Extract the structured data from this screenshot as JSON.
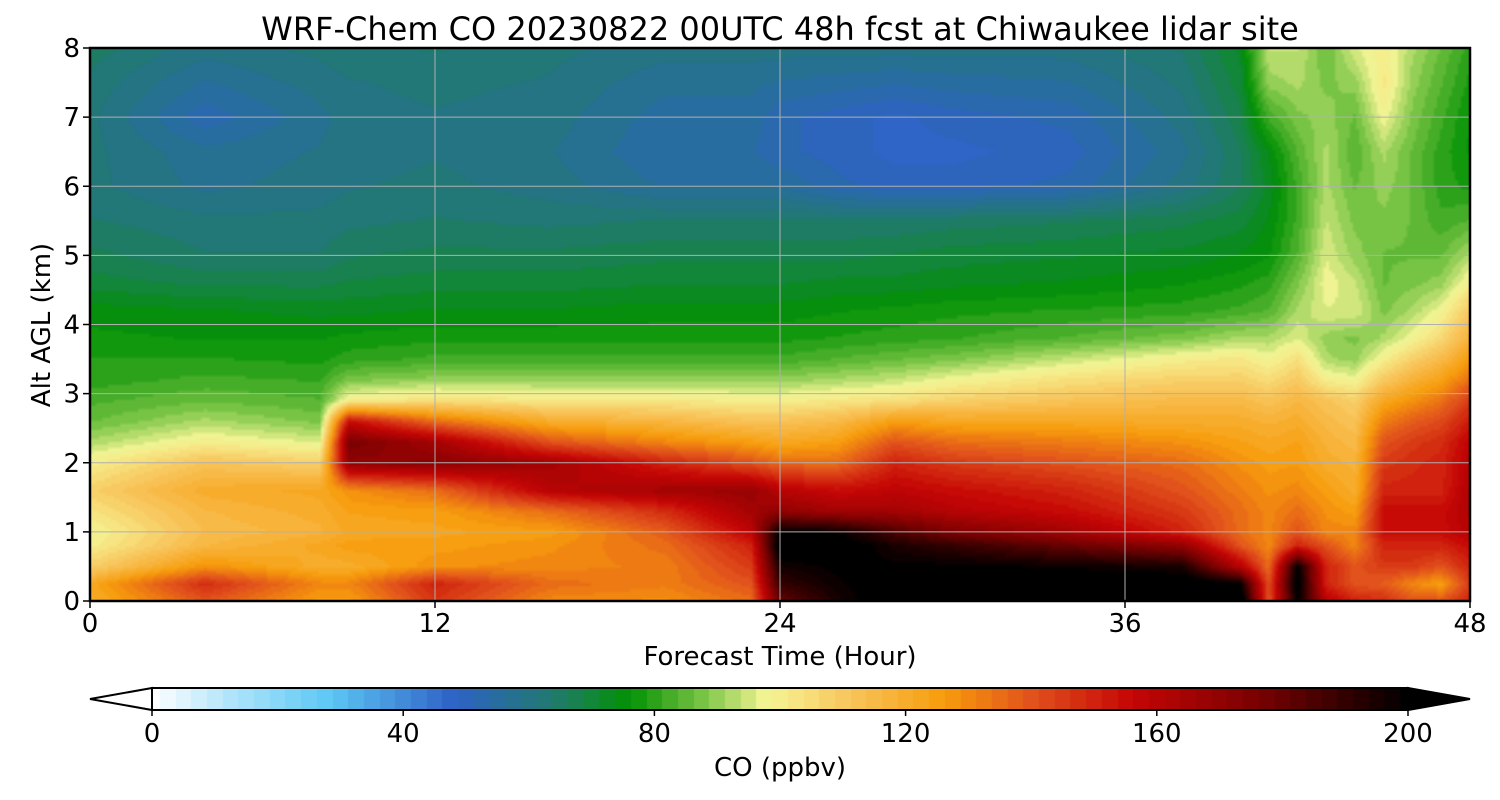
{
  "chart_data": {
    "type": "heatmap",
    "title": "WRF-Chem CO  20230822 00UTC 48h fcst at Chiwaukee lidar site",
    "xlabel": "Forecast Time (Hour)",
    "ylabel": "Alt AGL (km)",
    "xlim": [
      0,
      48
    ],
    "ylim": [
      0,
      8
    ],
    "xticks": [
      0,
      12,
      24,
      36,
      48
    ],
    "yticks": [
      0,
      1,
      2,
      3,
      4,
      5,
      6,
      7,
      8
    ],
    "grid": true,
    "colorbar": {
      "label": "CO  (ppbv)",
      "range": [
        0,
        200
      ],
      "ticks": [
        0,
        40,
        80,
        120,
        160,
        200
      ],
      "extend": "both",
      "orientation": "horizontal",
      "stops": [
        {
          "value": 0,
          "color": "#ffffff"
        },
        {
          "value": 12,
          "color": "#b3e5fa"
        },
        {
          "value": 28,
          "color": "#5ec8f5"
        },
        {
          "value": 48,
          "color": "#2e62c6"
        },
        {
          "value": 64,
          "color": "#207a6e"
        },
        {
          "value": 76,
          "color": "#039103"
        },
        {
          "value": 88,
          "color": "#7cc547"
        },
        {
          "value": 98,
          "color": "#f5f596"
        },
        {
          "value": 112,
          "color": "#f8c257"
        },
        {
          "value": 126,
          "color": "#f79c0c"
        },
        {
          "value": 140,
          "color": "#e1521c"
        },
        {
          "value": 156,
          "color": "#c50505"
        },
        {
          "value": 176,
          "color": "#7a0101"
        },
        {
          "value": 200,
          "color": "#000000"
        }
      ]
    },
    "time_hours": [
      0,
      4,
      8,
      9,
      12,
      16,
      20,
      23,
      24,
      26,
      28,
      30,
      34,
      38,
      40,
      41,
      42,
      43,
      44,
      45,
      46,
      47,
      48
    ],
    "altitudes_km": [
      0,
      0.25,
      0.5,
      0.8,
      1,
      1.3,
      1.6,
      2,
      2.3,
      2.6,
      2.9,
      3.2,
      3.5,
      3.8,
      4.2,
      4.6,
      5,
      5.5,
      6,
      6.5,
      7,
      7.5,
      8
    ],
    "co_ppbv": [
      [
        120,
        140,
        125,
        125,
        146,
        130,
        128,
        135,
        180,
        195,
        205,
        205,
        210,
        210,
        210,
        140,
        200,
        160,
        150,
        148,
        140,
        140,
        150
      ],
      [
        122,
        148,
        130,
        130,
        150,
        135,
        132,
        140,
        190,
        198,
        205,
        205,
        205,
        205,
        200,
        140,
        205,
        150,
        140,
        138,
        130,
        125,
        145
      ],
      [
        108,
        128,
        120,
        120,
        128,
        130,
        132,
        145,
        196,
        200,
        200,
        200,
        198,
        195,
        160,
        135,
        200,
        150,
        140,
        145,
        145,
        140,
        150
      ],
      [
        100,
        116,
        122,
        125,
        125,
        128,
        135,
        150,
        205,
        205,
        195,
        190,
        180,
        170,
        140,
        130,
        150,
        140,
        130,
        150,
        150,
        150,
        155
      ],
      [
        98,
        114,
        118,
        122,
        123,
        125,
        138,
        158,
        200,
        198,
        185,
        175,
        165,
        150,
        135,
        130,
        140,
        130,
        130,
        155,
        155,
        155,
        160
      ],
      [
        103,
        116,
        120,
        124,
        125,
        135,
        148,
        165,
        170,
        165,
        165,
        160,
        155,
        145,
        135,
        130,
        135,
        128,
        125,
        155,
        155,
        155,
        162
      ],
      [
        108,
        120,
        122,
        128,
        135,
        160,
        165,
        168,
        160,
        155,
        158,
        155,
        150,
        140,
        132,
        128,
        130,
        125,
        120,
        150,
        150,
        150,
        162
      ],
      [
        100,
        112,
        108,
        170,
        172,
        165,
        150,
        140,
        135,
        135,
        150,
        145,
        140,
        135,
        128,
        125,
        126,
        120,
        118,
        145,
        148,
        150,
        160
      ],
      [
        92,
        100,
        96,
        176,
        165,
        140,
        130,
        125,
        122,
        125,
        140,
        135,
        132,
        128,
        124,
        122,
        124,
        118,
        115,
        140,
        145,
        148,
        158
      ],
      [
        86,
        92,
        88,
        155,
        135,
        120,
        116,
        112,
        112,
        115,
        125,
        122,
        122,
        120,
        120,
        118,
        120,
        115,
        112,
        132,
        138,
        142,
        152
      ],
      [
        83,
        86,
        84,
        100,
        104,
        102,
        102,
        100,
        100,
        102,
        104,
        108,
        112,
        115,
        115,
        112,
        116,
        112,
        108,
        122,
        128,
        134,
        145
      ],
      [
        80,
        82,
        81,
        88,
        90,
        90,
        90,
        90,
        90,
        92,
        94,
        98,
        104,
        108,
        108,
        105,
        110,
        100,
        98,
        110,
        118,
        124,
        135
      ],
      [
        79,
        79,
        78,
        80,
        82,
        82,
        82,
        82,
        82,
        84,
        86,
        88,
        94,
        100,
        102,
        98,
        104,
        92,
        90,
        100,
        108,
        115,
        126
      ],
      [
        77,
        76,
        76,
        77,
        78,
        78,
        78,
        78,
        78,
        79,
        80,
        81,
        84,
        88,
        92,
        92,
        96,
        90,
        88,
        92,
        98,
        106,
        118
      ],
      [
        75,
        74,
        73,
        73,
        74,
        74,
        75,
        75,
        75,
        76,
        77,
        78,
        79,
        80,
        82,
        84,
        92,
        96,
        96,
        88,
        92,
        98,
        110
      ],
      [
        70,
        68,
        68,
        69,
        70,
        70,
        71,
        71,
        71,
        72,
        72,
        73,
        74,
        76,
        78,
        80,
        88,
        98,
        94,
        86,
        88,
        90,
        100
      ],
      [
        67,
        64,
        64,
        66,
        67,
        67,
        68,
        68,
        68,
        68,
        69,
        70,
        71,
        72,
        74,
        76,
        84,
        96,
        90,
        86,
        86,
        86,
        92
      ],
      [
        64,
        62,
        62,
        63,
        64,
        63,
        64,
        64,
        64,
        64,
        64,
        65,
        66,
        68,
        70,
        74,
        82,
        94,
        88,
        88,
        86,
        82,
        84
      ],
      [
        62,
        58,
        60,
        61,
        62,
        60,
        56,
        56,
        56,
        52,
        50,
        50,
        52,
        60,
        66,
        72,
        82,
        92,
        86,
        90,
        86,
        80,
        78
      ],
      [
        62,
        57,
        59,
        60,
        61,
        59,
        54,
        54,
        52,
        50,
        48,
        48,
        50,
        58,
        66,
        74,
        84,
        92,
        84,
        92,
        86,
        80,
        76
      ],
      [
        62,
        52,
        58,
        60,
        61,
        60,
        55,
        55,
        52,
        50,
        48,
        50,
        52,
        60,
        68,
        82,
        88,
        90,
        86,
        98,
        88,
        82,
        76
      ],
      [
        63,
        56,
        60,
        61,
        62,
        61,
        57,
        57,
        56,
        55,
        54,
        55,
        56,
        62,
        70,
        90,
        92,
        88,
        90,
        102,
        90,
        84,
        78
      ],
      [
        65,
        60,
        62,
        63,
        64,
        62,
        60,
        60,
        60,
        60,
        60,
        60,
        60,
        64,
        72,
        94,
        94,
        86,
        96,
        100,
        92,
        86,
        80
      ]
    ]
  }
}
